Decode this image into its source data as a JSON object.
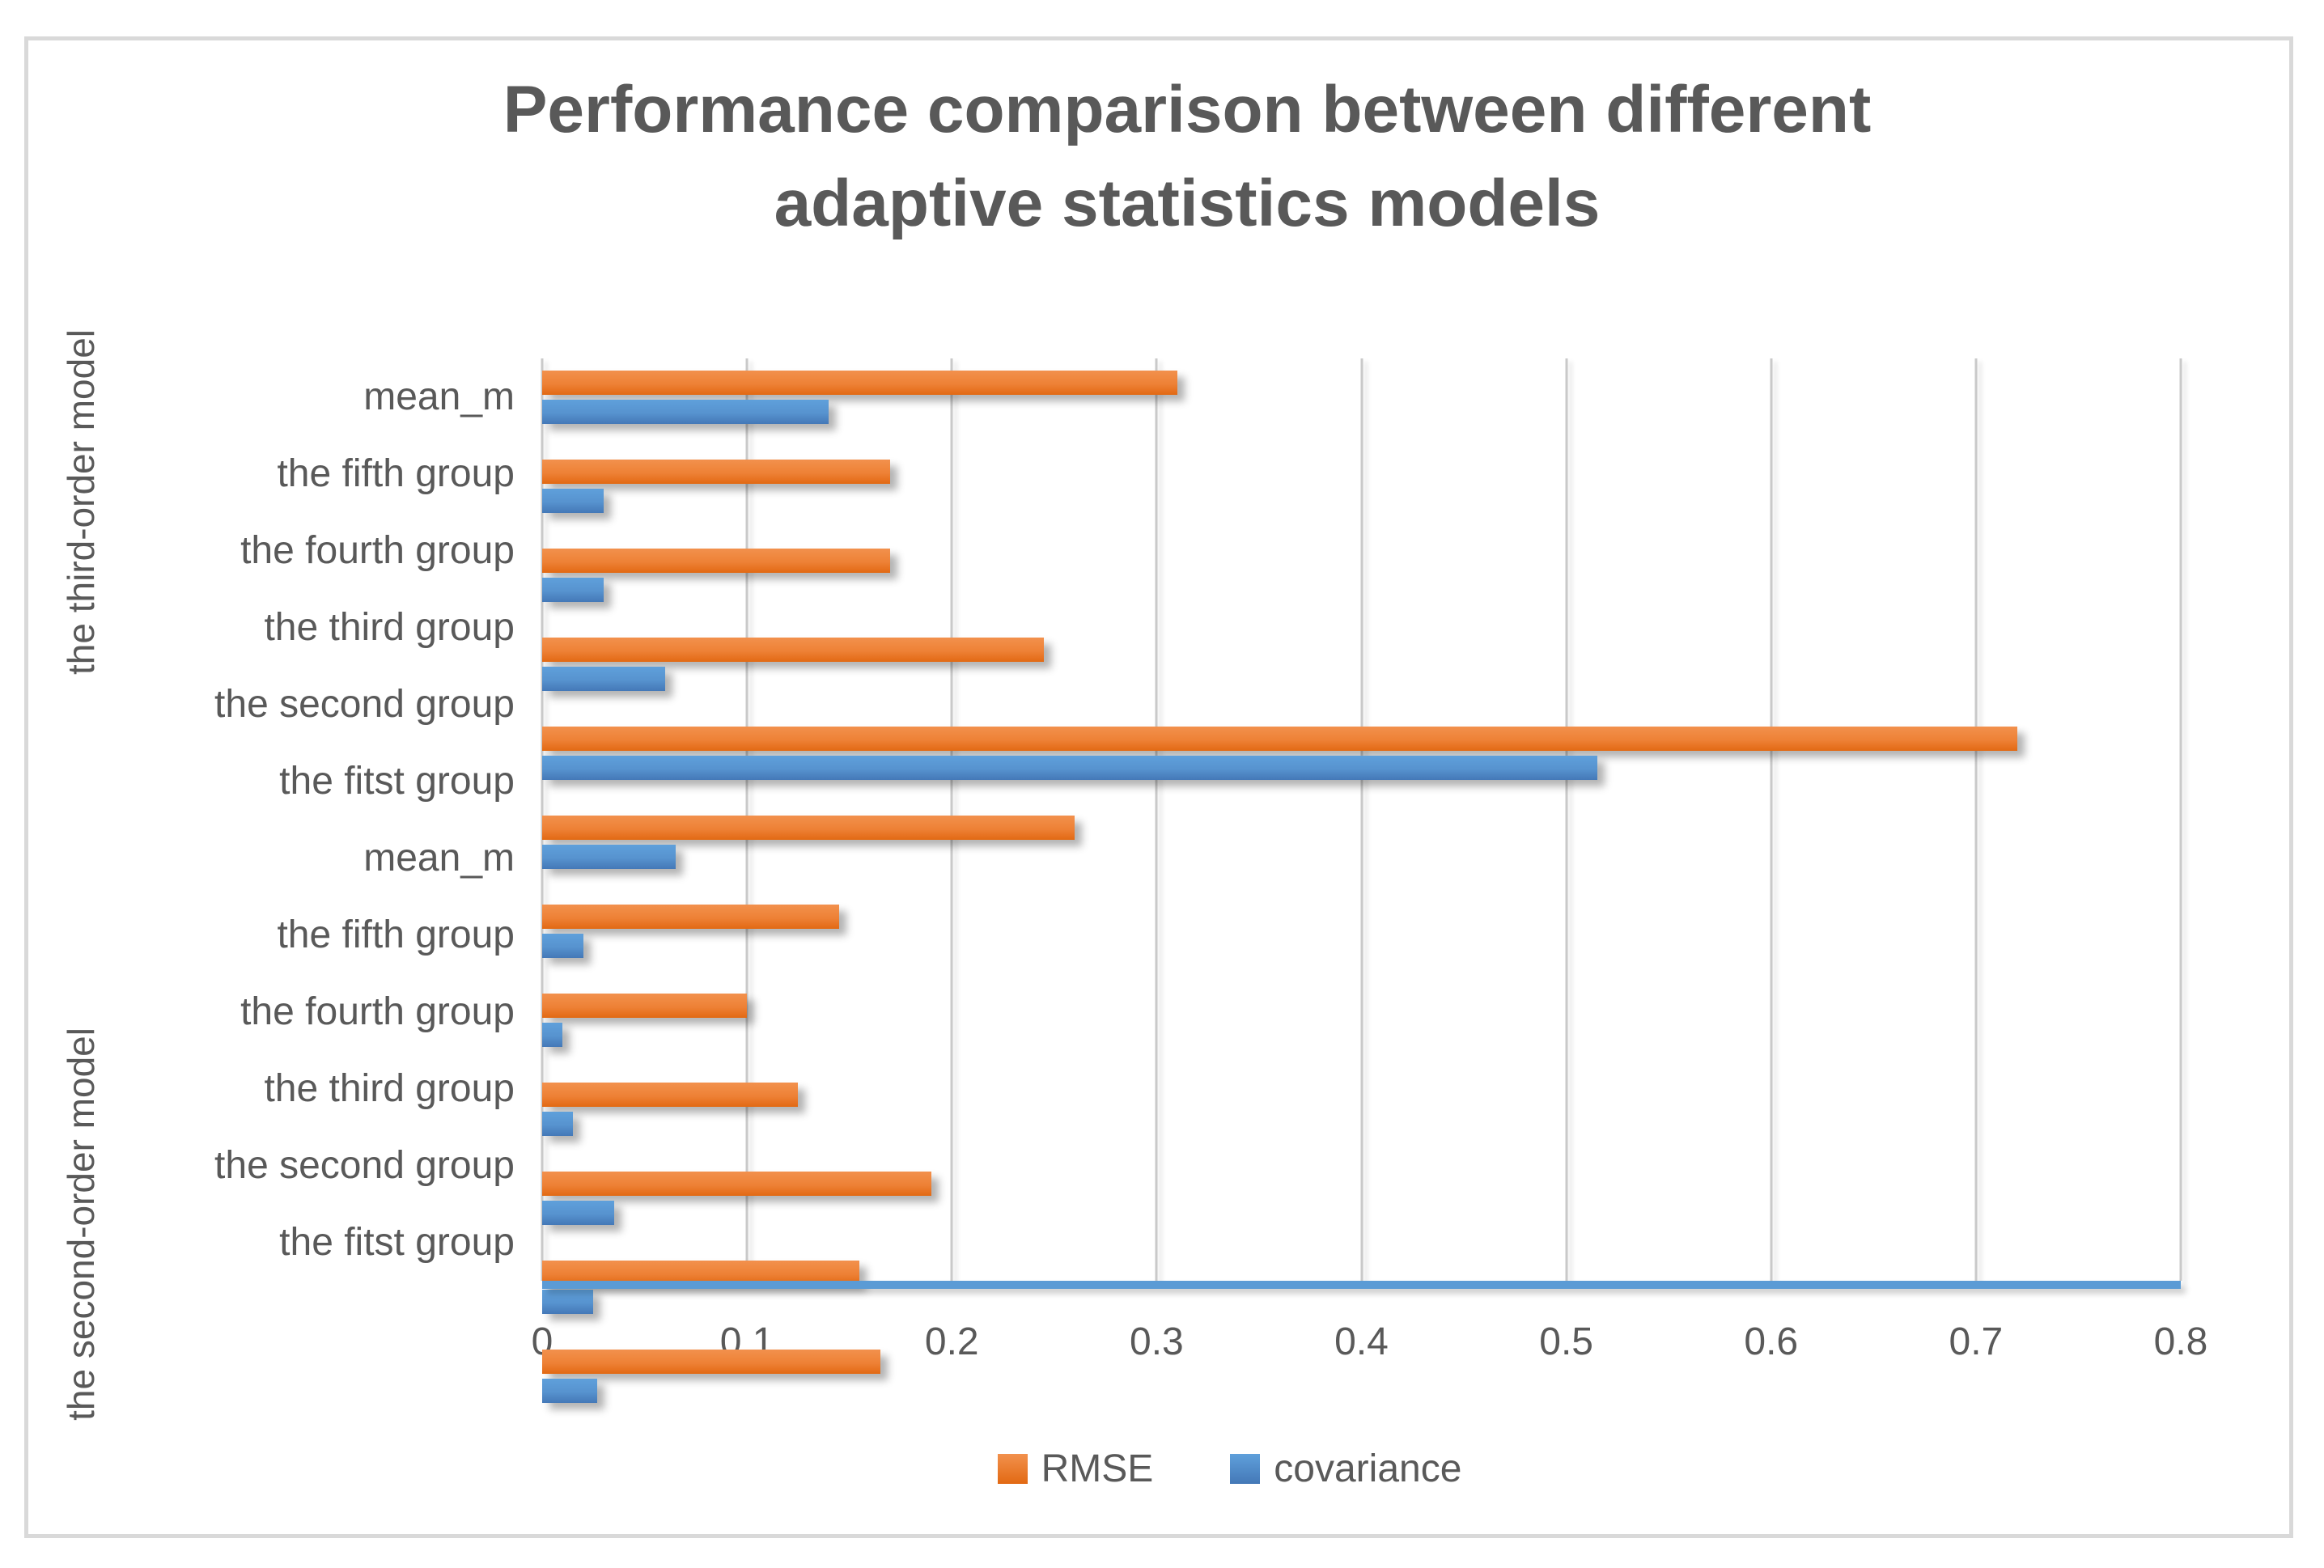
{
  "title": {
    "line1": "Performance comparison between different",
    "line2": "adaptive statistics models"
  },
  "chart_data": {
    "type": "bar",
    "orientation": "horizontal",
    "title": "Performance comparison between different adaptive statistics models",
    "xlim": [
      0,
      0.8
    ],
    "x_tick_labels": [
      "0",
      "0.1",
      "0.2",
      "0.3",
      "0.4",
      "0.5",
      "0.6",
      "0.7",
      "0.8"
    ],
    "grid": true,
    "legend_position": "bottom",
    "gridline_color": "#C9C9C9",
    "axis_line_color": "#5B9BD5",
    "text_color": "#595959",
    "series": [
      {
        "name": "RMSE",
        "color": "#ED7D31"
      },
      {
        "name": "covariance",
        "color": "#5B9BD5"
      }
    ],
    "groups": [
      {
        "label": "the third-order model",
        "rows": [
          {
            "category": "mean_m",
            "values": [
              0.31,
              0.14
            ]
          },
          {
            "category": "the fifth group",
            "values": [
              0.17,
              0.03
            ]
          },
          {
            "category": "the fourth group",
            "values": [
              0.17,
              0.03
            ]
          },
          {
            "category": "the third group",
            "values": [
              0.245,
              0.06
            ]
          },
          {
            "category": "the second group",
            "values": [
              0.72,
              0.515
            ]
          },
          {
            "category": "the fitst group",
            "values": [
              0.26,
              0.065
            ]
          }
        ]
      },
      {
        "label": "the second-order model",
        "rows": [
          {
            "category": "mean_m",
            "values": [
              0.145,
              0.02
            ]
          },
          {
            "category": "the fifth group",
            "values": [
              0.1,
              0.01
            ]
          },
          {
            "category": "the fourth group",
            "values": [
              0.125,
              0.015
            ]
          },
          {
            "category": "the third group",
            "values": [
              0.19,
              0.035
            ]
          },
          {
            "category": "the second group",
            "values": [
              0.155,
              0.025
            ]
          },
          {
            "category": "the fitst group",
            "values": [
              0.165,
              0.027
            ]
          }
        ]
      }
    ]
  }
}
